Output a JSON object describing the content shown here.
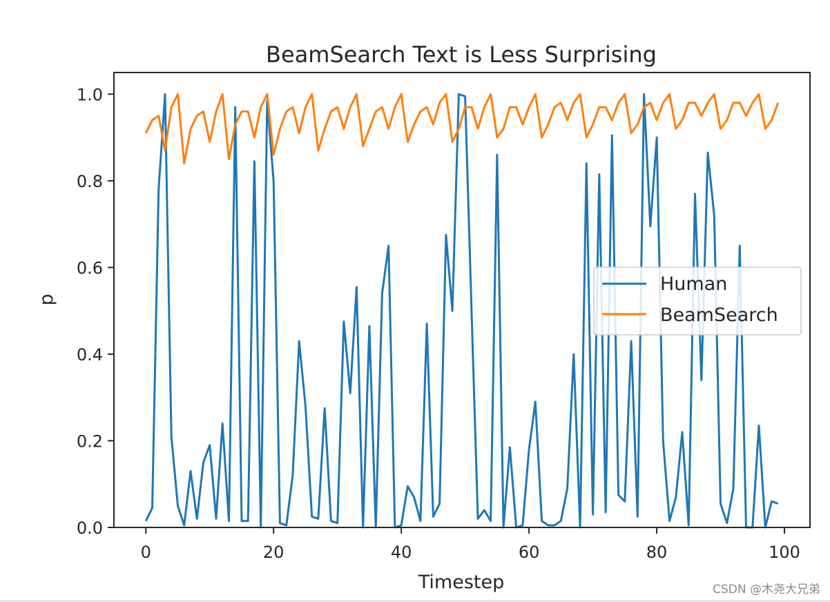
{
  "chart_data": {
    "type": "line",
    "title": "BeamSearch Text is Less Surprising",
    "xlabel": "Timestep",
    "ylabel": "p",
    "xlim": [
      -5,
      104
    ],
    "ylim": [
      0,
      1.05
    ],
    "xticks": [
      0,
      20,
      40,
      60,
      80,
      100
    ],
    "yticks": [
      0.0,
      0.2,
      0.4,
      0.6,
      0.8,
      1.0
    ],
    "xtick_labels": [
      "0",
      "20",
      "40",
      "60",
      "80",
      "100"
    ],
    "ytick_labels": [
      "0.0",
      "0.2",
      "0.4",
      "0.6",
      "0.8",
      "1.0"
    ],
    "legend_position": "center-right",
    "grid": false,
    "series": [
      {
        "name": "Human",
        "color": "#1f77b4",
        "values": [
          0.015,
          0.045,
          0.78,
          1.0,
          0.21,
          0.05,
          0.005,
          0.13,
          0.02,
          0.15,
          0.19,
          0.02,
          0.24,
          0.015,
          0.97,
          0.015,
          0.015,
          0.845,
          0.0,
          0.985,
          0.8,
          0.01,
          0.005,
          0.12,
          0.43,
          0.28,
          0.025,
          0.02,
          0.275,
          0.015,
          0.01,
          0.475,
          0.31,
          0.555,
          0.0,
          0.465,
          0.0,
          0.54,
          0.65,
          0.0,
          0.005,
          0.095,
          0.07,
          0.015,
          0.47,
          0.025,
          0.055,
          0.675,
          0.5,
          1.0,
          0.995,
          0.5,
          0.02,
          0.04,
          0.015,
          0.86,
          0.0,
          0.185,
          0.0,
          0.005,
          0.18,
          0.29,
          0.015,
          0.005,
          0.005,
          0.015,
          0.09,
          0.4,
          0.0,
          0.84,
          0.03,
          0.815,
          0.035,
          0.905,
          0.075,
          0.06,
          0.43,
          0.025,
          1.0,
          0.695,
          0.9,
          0.2,
          0.015,
          0.07,
          0.22,
          0.005,
          0.77,
          0.34,
          0.865,
          0.72,
          0.055,
          0.01,
          0.09,
          0.65,
          0.0,
          0.0,
          0.235,
          0.0,
          0.06,
          0.055
        ]
      },
      {
        "name": "BeamSearch",
        "color": "#ff7f0e",
        "values": [
          0.91,
          0.94,
          0.95,
          0.87,
          0.97,
          1.0,
          0.84,
          0.92,
          0.95,
          0.96,
          0.89,
          0.96,
          1.0,
          0.85,
          0.93,
          0.96,
          0.96,
          0.9,
          0.97,
          1.0,
          0.86,
          0.92,
          0.96,
          0.97,
          0.91,
          0.97,
          1.0,
          0.87,
          0.92,
          0.96,
          0.97,
          0.92,
          0.97,
          1.0,
          0.88,
          0.92,
          0.96,
          0.97,
          0.92,
          0.97,
          1.0,
          0.89,
          0.93,
          0.96,
          0.97,
          0.93,
          0.98,
          1.0,
          0.89,
          0.92,
          0.97,
          0.97,
          0.92,
          0.97,
          1.0,
          0.9,
          0.92,
          0.97,
          0.97,
          0.93,
          0.97,
          1.0,
          0.9,
          0.93,
          0.97,
          0.98,
          0.94,
          0.98,
          1.0,
          0.9,
          0.93,
          0.97,
          0.97,
          0.94,
          0.98,
          1.0,
          0.91,
          0.93,
          0.97,
          0.98,
          0.94,
          0.98,
          1.0,
          0.92,
          0.94,
          0.98,
          0.98,
          0.95,
          0.98,
          1.0,
          0.92,
          0.94,
          0.98,
          0.98,
          0.95,
          0.98,
          1.0,
          0.92,
          0.94,
          0.98
        ]
      }
    ]
  },
  "watermark": "CSDN @木尧大兄弟",
  "colors": {
    "axis": "#262626",
    "background": "#ffffff"
  }
}
